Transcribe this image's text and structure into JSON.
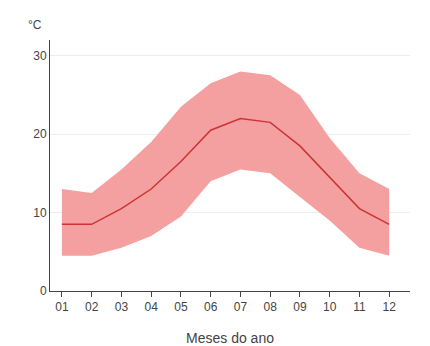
{
  "chart_data": {
    "type": "line",
    "x": [
      1,
      2,
      3,
      4,
      5,
      6,
      7,
      8,
      9,
      10,
      11,
      12
    ],
    "xlabel": "Meses do ano",
    "ylabel": "°C",
    "xlim": [
      0.6,
      12.7
    ],
    "xticks": [
      {
        "value": 1,
        "label": "01"
      },
      {
        "value": 2,
        "label": "02"
      },
      {
        "value": 3,
        "label": "03"
      },
      {
        "value": 4,
        "label": "04"
      },
      {
        "value": 5,
        "label": "05"
      },
      {
        "value": 6,
        "label": "06"
      },
      {
        "value": 7,
        "label": "07"
      },
      {
        "value": 8,
        "label": "08"
      },
      {
        "value": 9,
        "label": "09"
      },
      {
        "value": 10,
        "label": "10"
      },
      {
        "value": 11,
        "label": "11"
      },
      {
        "value": 12,
        "label": "12"
      }
    ],
    "ylim": [
      0,
      32
    ],
    "yticks": [
      0,
      10,
      20,
      30
    ],
    "grid": true,
    "series": [
      {
        "type": "area",
        "color": "#f5a0a0",
        "upper": [
          13.0,
          12.5,
          15.5,
          19.0,
          23.5,
          26.5,
          28.0,
          27.5,
          25.0,
          19.5,
          15.0,
          13.0
        ],
        "lower": [
          4.5,
          4.5,
          5.5,
          7.0,
          9.5,
          14.0,
          15.5,
          15.0,
          12.0,
          9.0,
          5.5,
          4.5
        ]
      },
      {
        "type": "line",
        "color": "#cc3333",
        "values": [
          8.5,
          8.5,
          10.5,
          13.0,
          16.5,
          20.5,
          22.0,
          21.5,
          18.5,
          14.5,
          10.5,
          8.5
        ]
      }
    ]
  }
}
